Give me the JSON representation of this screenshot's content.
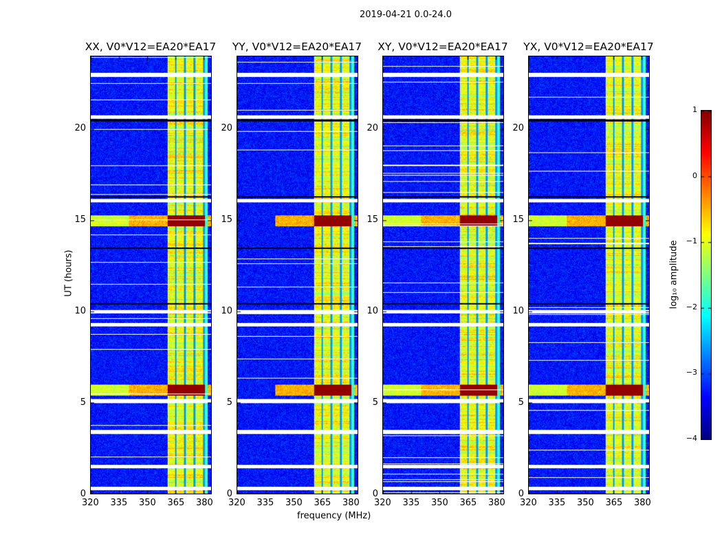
{
  "chart_data": {
    "type": "heatmap",
    "suptitle": "2019-04-21 0.0-24.0",
    "xlabel": "frequency (MHz)",
    "ylabel": "UT (hours)",
    "xlim": [
      320,
      384
    ],
    "ylim": [
      0,
      24
    ],
    "xticks": [
      "320",
      "335",
      "350",
      "365",
      "380"
    ],
    "yticks": [
      "0",
      "5",
      "10",
      "15",
      "20"
    ],
    "panels": [
      {
        "title": "XX, V0*V12=EA20*EA17"
      },
      {
        "title": "YY, V0*V12=EA20*EA17"
      },
      {
        "title": "XY, V0*V12=EA20*EA17"
      },
      {
        "title": "YX, V0*V12=EA20*EA17"
      }
    ],
    "colorbar": {
      "label": "log₁₀ amplitude",
      "range": [
        -4,
        1
      ],
      "ticks": [
        "1",
        "0",
        "−1",
        "−2",
        "−3",
        "−4"
      ],
      "colormap": "jet"
    },
    "features": {
      "background_log_amplitude": -3.3,
      "rfi_band_mhz": [
        360.5,
        382
      ],
      "rfi_log_amplitude": -1,
      "rfi_channel_gaps_mhz": [
        365,
        370,
        375,
        380
      ],
      "strong_rfi_ut_hours": [
        [
          14.7,
          15.3
        ],
        [
          5.4,
          6.0
        ]
      ],
      "flagged_ut_hours": [
        23.0,
        20.7,
        16.1,
        10.0,
        9.3,
        5.1,
        3.4,
        1.5,
        0.3
      ],
      "dark_ut_hours": [
        20.5,
        16.3,
        13.5,
        10.45
      ]
    }
  }
}
